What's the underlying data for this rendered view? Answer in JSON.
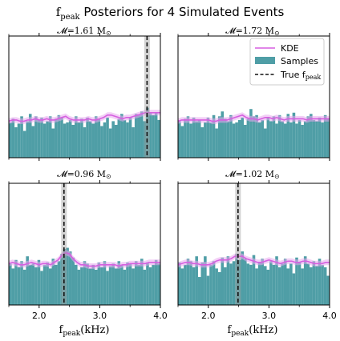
{
  "figure": {
    "title": "f",
    "title_sub": "peak",
    "title_rest": " Posteriors for 4 Simulated Events"
  },
  "colors": {
    "bar": "#4f9ea6",
    "kde": "#d65fe0",
    "kde_band": "#e7a8ef",
    "truth": "#111111",
    "truth_band": "#9e9e9e"
  },
  "legend": {
    "kde": "KDE",
    "samples": "Samples",
    "truth": "True f",
    "truth_sub": "peak"
  },
  "axes_labels": {
    "xlabel_main": "f",
    "xlabel_sub": "peak",
    "xlabel_unit": "(kHz)"
  },
  "chart_data": [
    {
      "type": "bar",
      "panel_title": "𝓜=1.61 M",
      "panel_title_sub": "⊙",
      "xlim": [
        1.5,
        4.0
      ],
      "ylim": [
        0,
        1.0
      ],
      "xticks": [
        "2.0",
        "3.0",
        "4.0"
      ],
      "show_xticklabels": false,
      "true_fpeak": 3.78,
      "bin_heights": [
        0.29,
        0.32,
        0.25,
        0.28,
        0.34,
        0.22,
        0.3,
        0.36,
        0.26,
        0.34,
        0.31,
        0.33,
        0.28,
        0.3,
        0.34,
        0.24,
        0.32,
        0.35,
        0.33,
        0.28,
        0.29,
        0.31,
        0.27,
        0.34,
        0.29,
        0.32,
        0.25,
        0.33,
        0.3,
        0.28,
        0.34,
        0.32,
        0.26,
        0.29,
        0.33,
        0.24,
        0.3,
        0.27,
        0.32,
        0.36,
        0.31,
        0.29,
        0.33,
        0.25,
        0.36,
        0.35,
        0.38,
        0.3,
        0.41,
        0.37,
        0.35,
        0.37,
        0.31
      ],
      "kde_y": [
        0.3,
        0.31,
        0.31,
        0.3,
        0.3,
        0.31,
        0.31,
        0.32,
        0.31,
        0.31,
        0.32,
        0.31,
        0.31,
        0.32,
        0.33,
        0.34,
        0.32,
        0.31,
        0.31,
        0.31,
        0.31,
        0.32,
        0.31,
        0.31,
        0.32,
        0.33,
        0.35,
        0.35,
        0.34,
        0.33,
        0.32,
        0.33,
        0.33,
        0.34,
        0.35,
        0.36,
        0.37,
        0.37,
        0.37,
        0.37,
        0.37
      ]
    },
    {
      "type": "bar",
      "panel_title": "𝓜=1.72 M",
      "panel_title_sub": "⊙",
      "xlim": [
        1.5,
        4.0
      ],
      "ylim": [
        0,
        1.0
      ],
      "xticks": [
        "2.0",
        "3.0",
        "4.0"
      ],
      "show_xticklabels": false,
      "bin_heights": [
        0.3,
        0.26,
        0.32,
        0.34,
        0.28,
        0.33,
        0.3,
        0.31,
        0.25,
        0.29,
        0.33,
        0.29,
        0.35,
        0.24,
        0.34,
        0.38,
        0.32,
        0.3,
        0.35,
        0.28,
        0.29,
        0.31,
        0.33,
        0.27,
        0.32,
        0.4,
        0.34,
        0.35,
        0.29,
        0.31,
        0.24,
        0.33,
        0.3,
        0.34,
        0.28,
        0.35,
        0.3,
        0.28,
        0.36,
        0.29,
        0.37,
        0.28,
        0.31,
        0.27,
        0.3,
        0.34,
        0.36,
        0.31,
        0.3,
        0.33,
        0.29,
        0.35,
        0.32
      ],
      "kde_y": [
        0.3,
        0.31,
        0.31,
        0.31,
        0.31,
        0.31,
        0.31,
        0.31,
        0.31,
        0.3,
        0.3,
        0.31,
        0.31,
        0.31,
        0.32,
        0.33,
        0.34,
        0.35,
        0.33,
        0.32,
        0.32,
        0.31,
        0.32,
        0.33,
        0.33,
        0.32,
        0.33,
        0.32,
        0.31,
        0.32,
        0.32,
        0.32,
        0.32,
        0.32,
        0.31,
        0.32,
        0.32,
        0.32,
        0.32,
        0.32,
        0.32
      ]
    },
    {
      "type": "bar",
      "panel_title": "𝓜=0.96 M",
      "panel_title_sub": "⊙",
      "xlim": [
        1.5,
        4.0
      ],
      "ylim": [
        0,
        1.0
      ],
      "xticks": [
        "2.0",
        "3.0",
        "4.0"
      ],
      "show_xticklabels": true,
      "true_fpeak": 2.41,
      "bin_heights": [
        0.34,
        0.3,
        0.37,
        0.31,
        0.36,
        0.29,
        0.4,
        0.33,
        0.34,
        0.31,
        0.37,
        0.28,
        0.33,
        0.35,
        0.3,
        0.38,
        0.33,
        0.36,
        0.42,
        0.46,
        0.47,
        0.44,
        0.39,
        0.33,
        0.29,
        0.31,
        0.36,
        0.34,
        0.3,
        0.33,
        0.29,
        0.35,
        0.31,
        0.36,
        0.28,
        0.32,
        0.34,
        0.3,
        0.36,
        0.33,
        0.29,
        0.35,
        0.34,
        0.3,
        0.36,
        0.33,
        0.38,
        0.29,
        0.35,
        0.31,
        0.33,
        0.37,
        0.34
      ],
      "kde_y": [
        0.34,
        0.35,
        0.34,
        0.33,
        0.33,
        0.34,
        0.35,
        0.34,
        0.33,
        0.34,
        0.34,
        0.33,
        0.35,
        0.37,
        0.41,
        0.43,
        0.42,
        0.38,
        0.35,
        0.33,
        0.33,
        0.32,
        0.32,
        0.32,
        0.33,
        0.33,
        0.33,
        0.33,
        0.33,
        0.32,
        0.33,
        0.33,
        0.34,
        0.34,
        0.34,
        0.34,
        0.34,
        0.35,
        0.35,
        0.35,
        0.35
      ]
    },
    {
      "type": "bar",
      "panel_title": "𝓜=1.02 M",
      "panel_title_sub": "⊙",
      "xlim": [
        1.5,
        4.0
      ],
      "ylim": [
        0,
        1.0
      ],
      "xticks": [
        "2.0",
        "3.0",
        "4.0"
      ],
      "show_xticklabels": true,
      "true_fpeak": 2.49,
      "bin_heights": [
        0.35,
        0.3,
        0.33,
        0.38,
        0.36,
        0.31,
        0.4,
        0.23,
        0.35,
        0.4,
        0.24,
        0.33,
        0.36,
        0.3,
        0.27,
        0.39,
        0.31,
        0.4,
        0.34,
        0.36,
        0.42,
        0.37,
        0.44,
        0.38,
        0.34,
        0.33,
        0.41,
        0.3,
        0.35,
        0.38,
        0.32,
        0.29,
        0.36,
        0.33,
        0.4,
        0.31,
        0.34,
        0.38,
        0.3,
        0.34,
        0.26,
        0.39,
        0.35,
        0.3,
        0.4,
        0.34,
        0.31,
        0.36,
        0.32,
        0.38,
        0.33,
        0.31,
        0.24
      ],
      "kde_y": [
        0.33,
        0.34,
        0.35,
        0.35,
        0.34,
        0.34,
        0.33,
        0.33,
        0.33,
        0.34,
        0.36,
        0.37,
        0.37,
        0.37,
        0.38,
        0.4,
        0.4,
        0.4,
        0.38,
        0.37,
        0.36,
        0.35,
        0.35,
        0.36,
        0.37,
        0.36,
        0.35,
        0.34,
        0.35,
        0.36,
        0.36,
        0.35,
        0.35,
        0.36,
        0.36,
        0.35,
        0.34,
        0.34,
        0.34,
        0.35,
        0.35
      ]
    }
  ]
}
